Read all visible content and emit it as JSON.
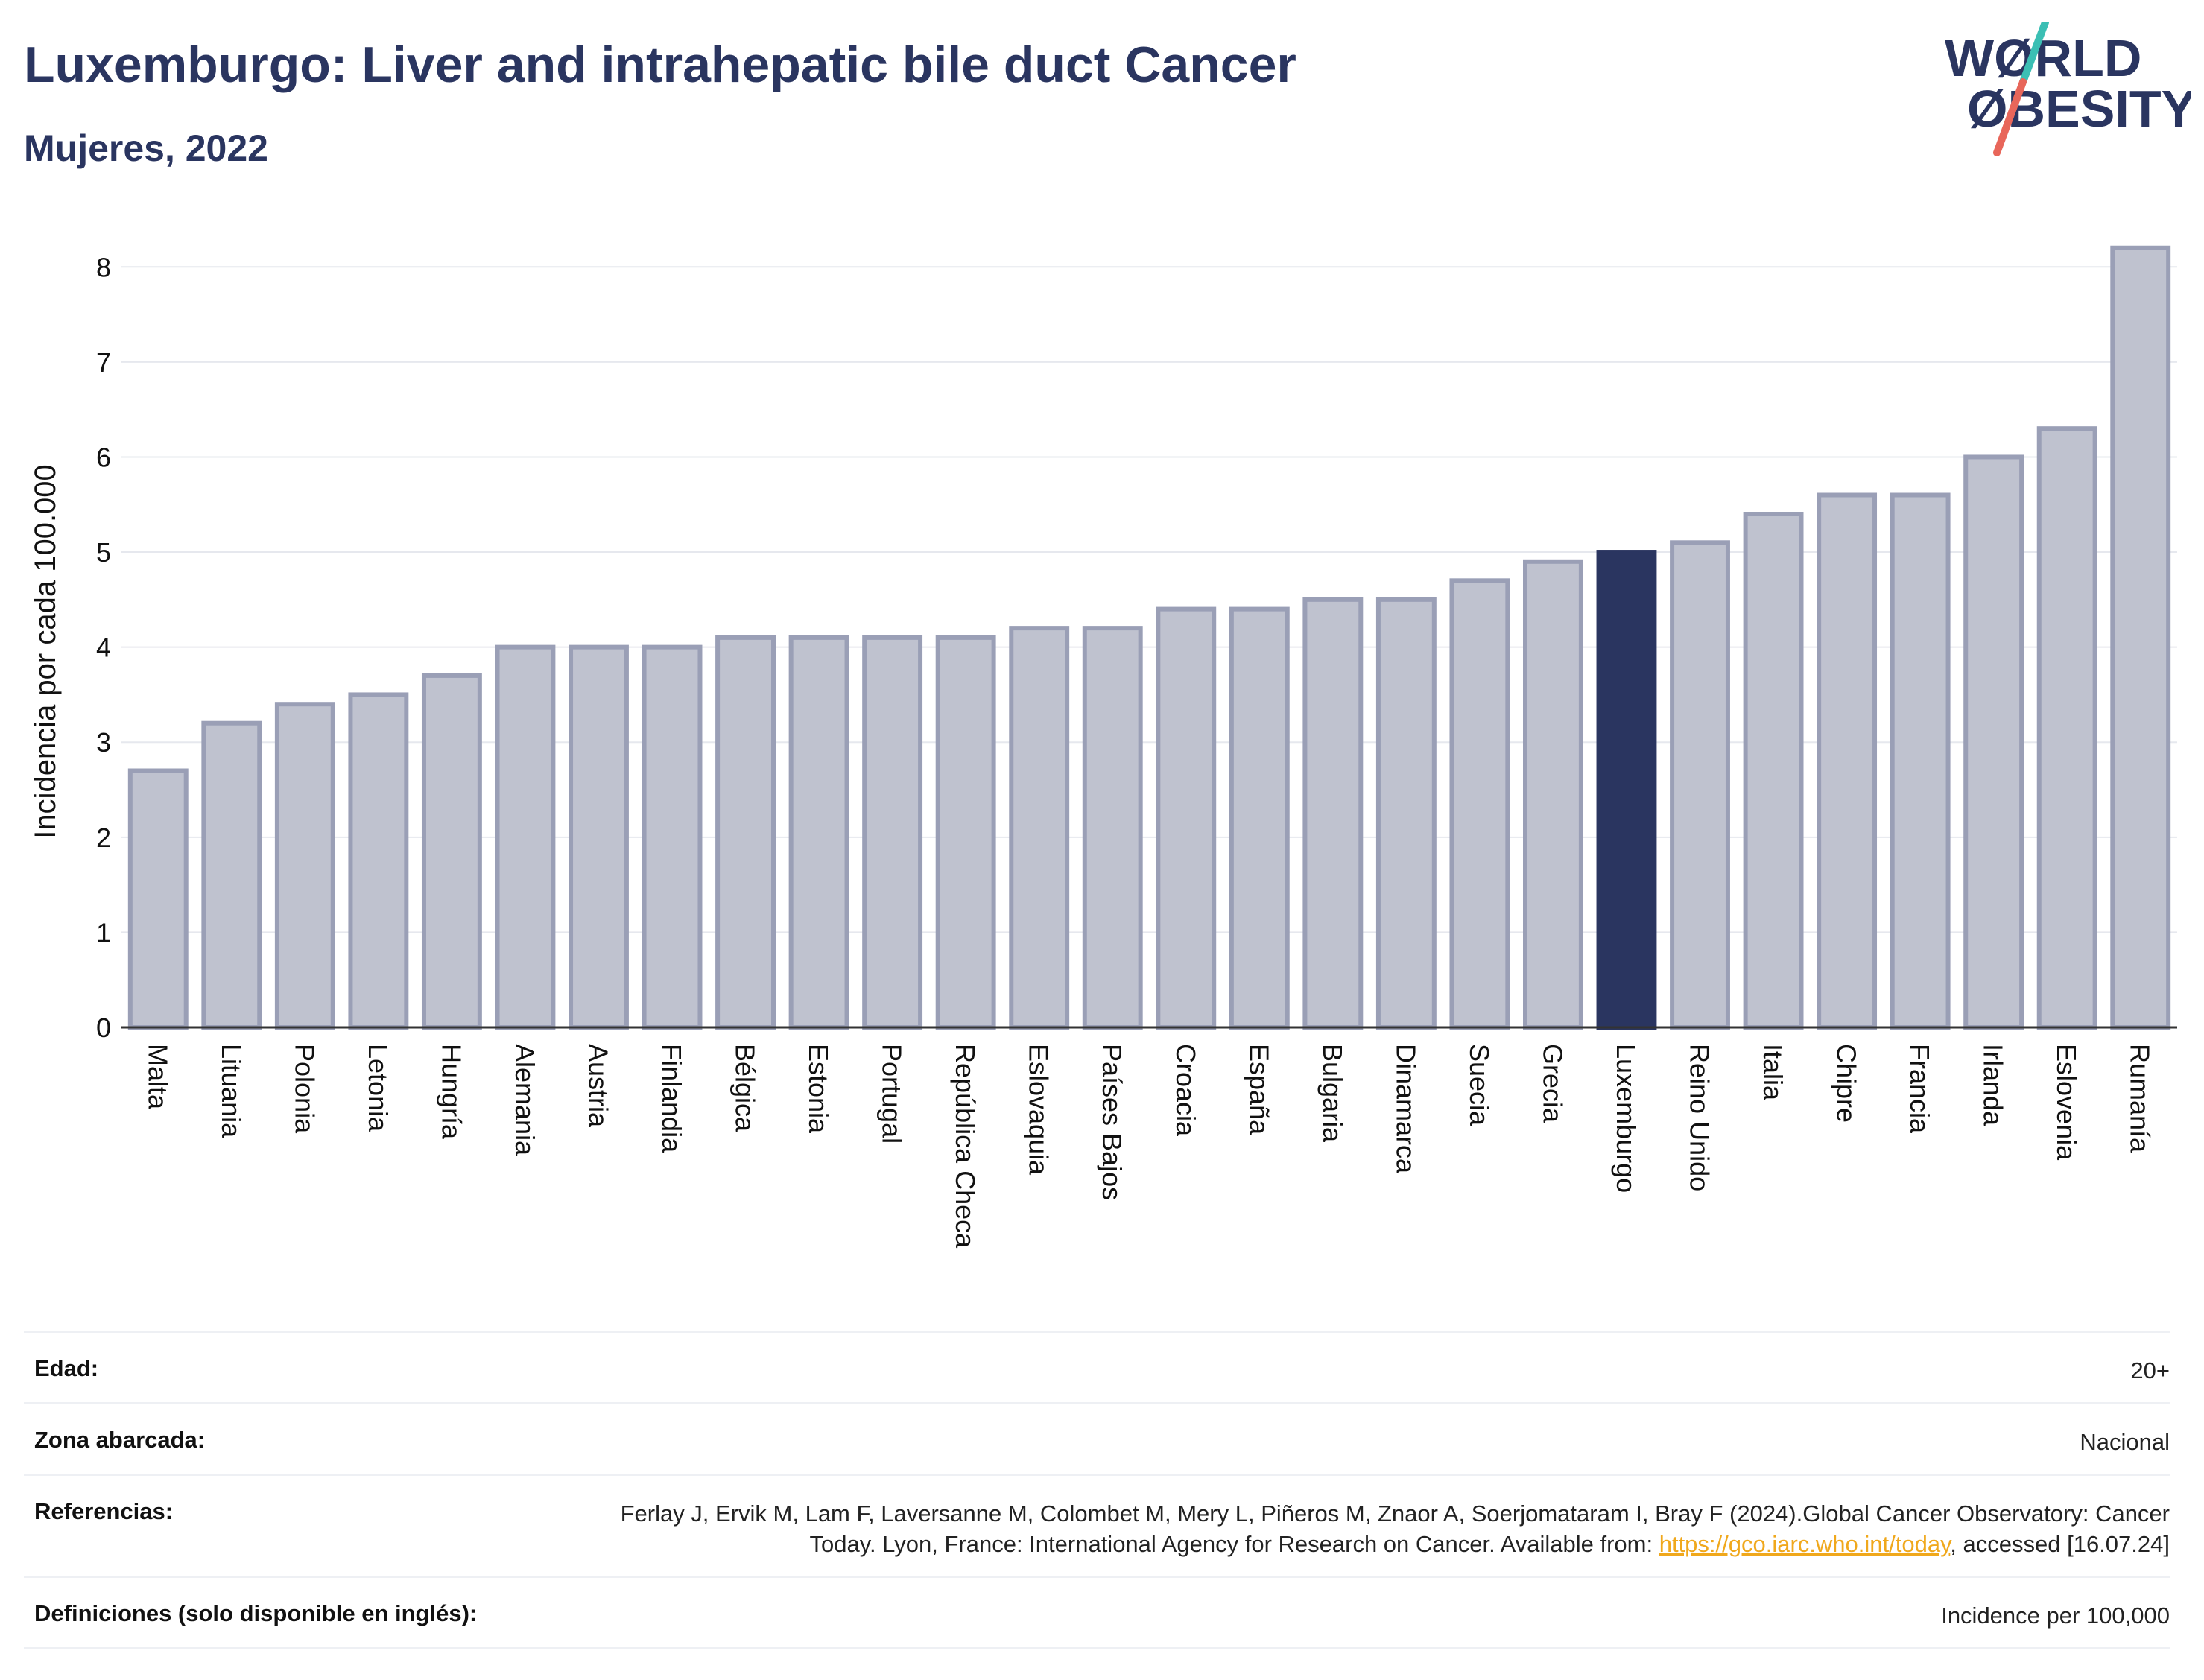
{
  "header": {
    "title": "Luxemburgo: Liver and intrahepatic bile duct Cancer",
    "subtitle": "Mujeres, 2022"
  },
  "logo": {
    "line1": "WØRLD",
    "line2": "ØBESITY",
    "colors": {
      "text": "#2a3560",
      "slash_top": "#3bbfb4",
      "slash_bottom": "#e8665a"
    }
  },
  "chart_data": {
    "type": "bar",
    "ylabel": "Incidencia por cada 100.000",
    "ylim": [
      0,
      8.3
    ],
    "yticks": [
      0,
      1,
      2,
      3,
      4,
      5,
      6,
      7,
      8
    ],
    "grid": true,
    "highlight": "Luxemburgo",
    "colors": {
      "bar": "#bfc2cf",
      "bar_border": "#9a9fb6",
      "highlight": "#2a3560",
      "axis": "#333333"
    },
    "categories": [
      "Malta",
      "Lituania",
      "Polonia",
      "Letonia",
      "Hungría",
      "Alemania",
      "Austria",
      "Finlandia",
      "Bélgica",
      "Estonia",
      "Portugal",
      "República Checa",
      "Eslovaquia",
      "Países Bajos",
      "Croacia",
      "España",
      "Bulgaria",
      "Dinamarca",
      "Suecia",
      "Grecia",
      "Luxemburgo",
      "Reino Unido",
      "Italia",
      "Chipre",
      "Francia",
      "Irlanda",
      "Eslovenia",
      "Rumanía"
    ],
    "values": [
      2.7,
      3.2,
      3.4,
      3.5,
      3.7,
      4.0,
      4.0,
      4.0,
      4.1,
      4.1,
      4.1,
      4.1,
      4.2,
      4.2,
      4.4,
      4.4,
      4.5,
      4.5,
      4.7,
      4.9,
      5.0,
      5.1,
      5.4,
      5.6,
      5.6,
      6.0,
      6.3,
      8.2
    ]
  },
  "info": {
    "age_label": "Edad:",
    "age_value": "20+",
    "area_label": "Zona abarcada:",
    "area_value": "Nacional",
    "refs_label": "Referencias:",
    "refs_text_1": "Ferlay J, Ervik M, Lam F, Laversanne M, Colombet M, Mery L, Piñeros M, Znaor A, Soerjomataram I, Bray F (2024).Global Cancer Observatory: Cancer Today. Lyon, France: International Agency for Research on Cancer. Available from: ",
    "refs_link": "https://gco.iarc.who.int/today",
    "refs_text_2": ", accessed [16.07.24]",
    "defs_label": "Definiciones (solo disponible en inglés):",
    "defs_value": "Incidence per 100,000"
  }
}
